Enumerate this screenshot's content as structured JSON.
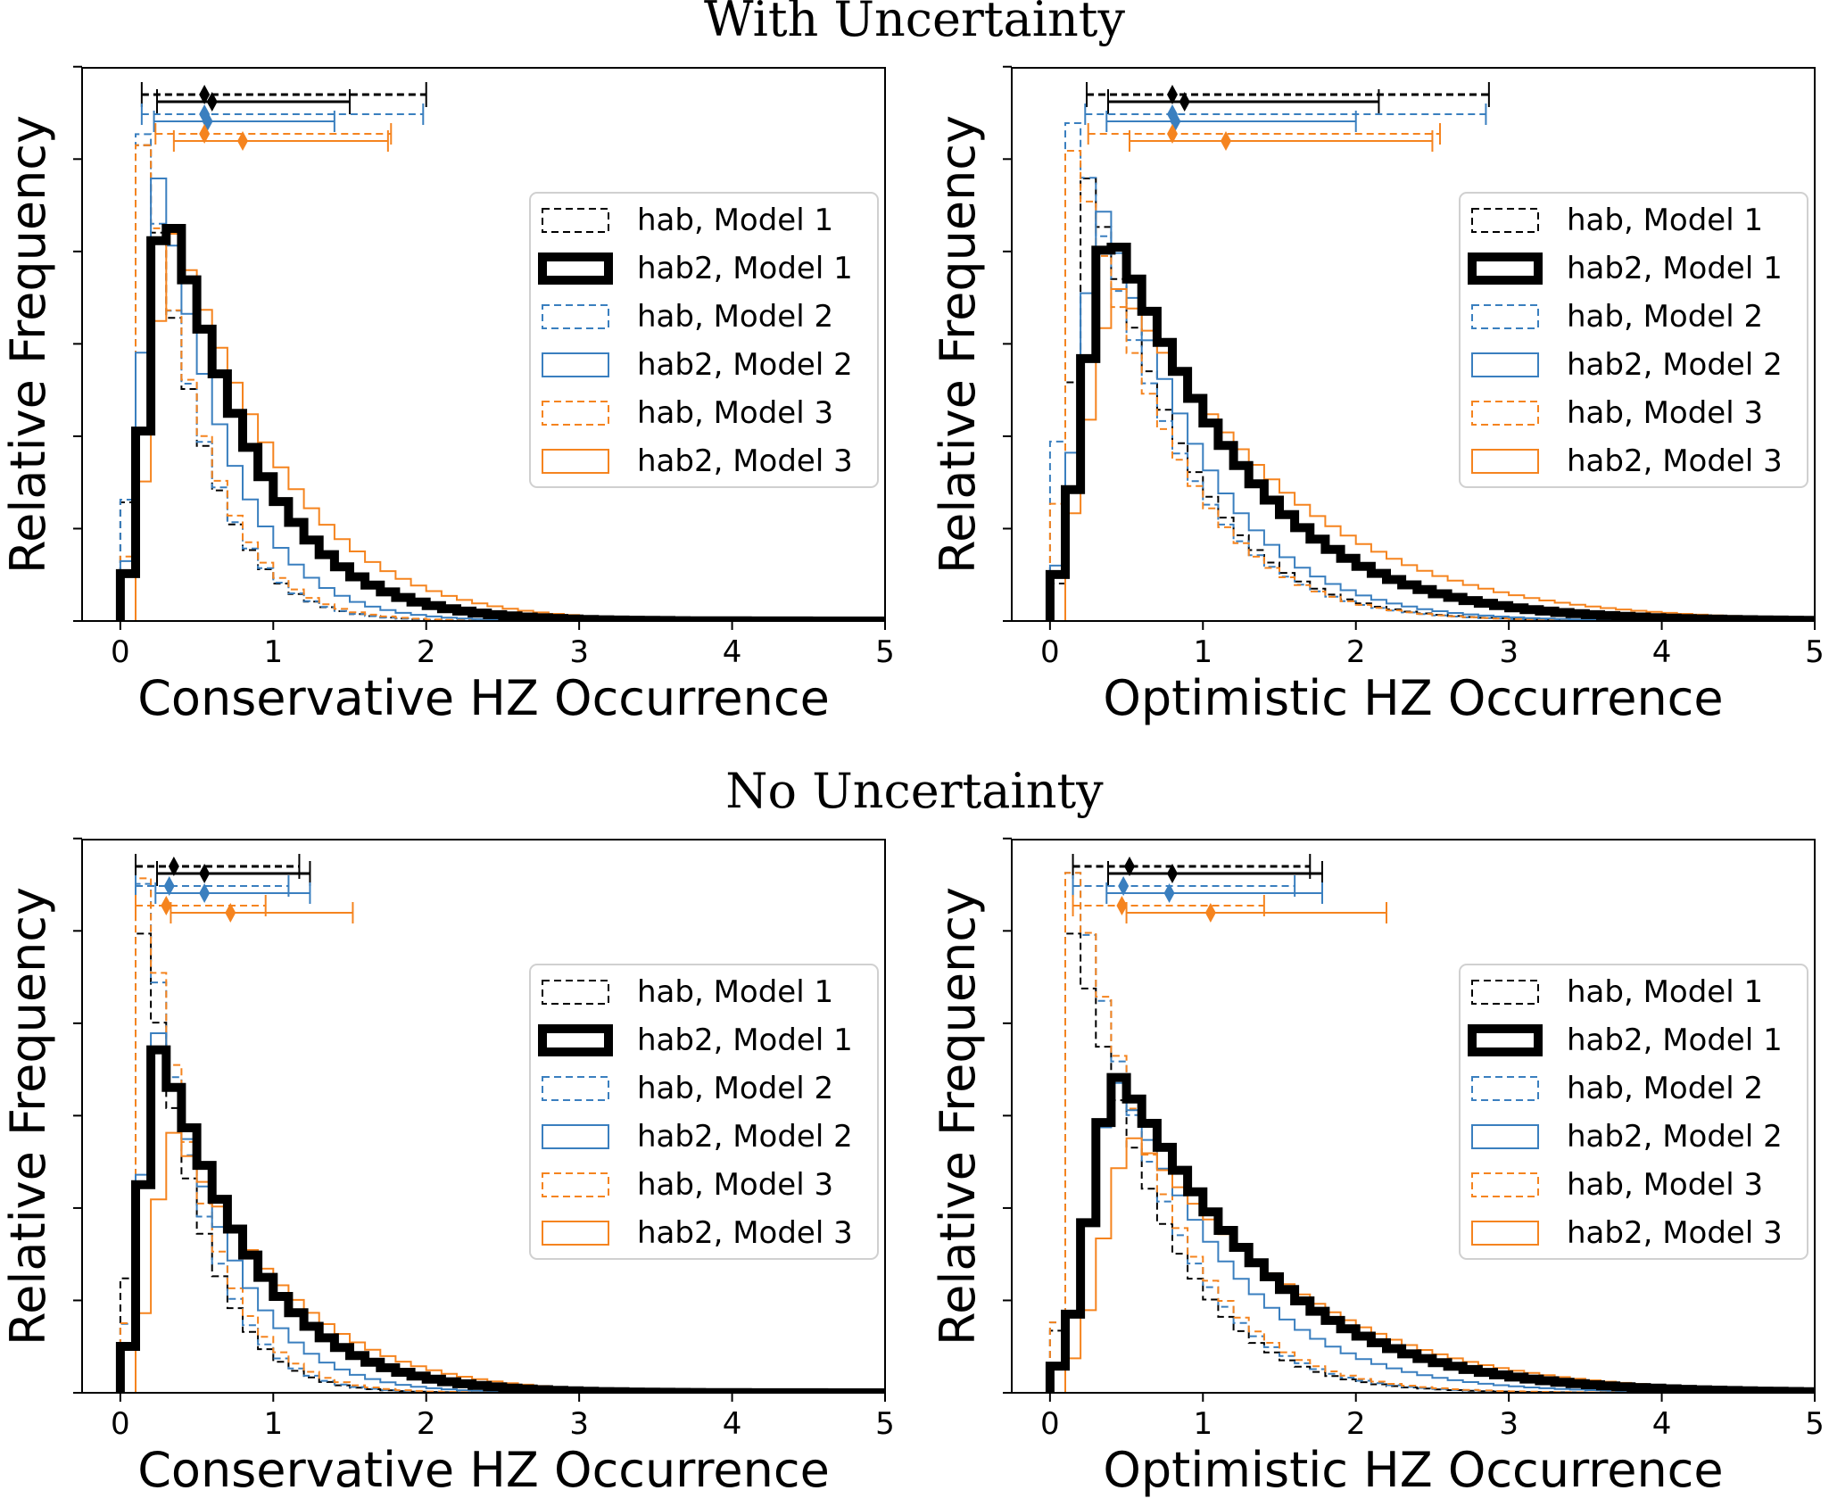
{
  "figure": {
    "top_title": "With Uncertainty",
    "bottom_title": "No Uncertainty"
  },
  "colors": {
    "model1": "#000000",
    "model2": "#3a7fbf",
    "model3": "#f5841f"
  },
  "chart_data": [
    {
      "id": "p1",
      "type": "histogram",
      "section": "With Uncertainty",
      "xlabel": "Conservative HZ Occurrence",
      "ylabel": "Relative Frequency",
      "xlim": [
        -0.25,
        5
      ],
      "xticks": [
        "0",
        "1",
        "2",
        "3",
        "4",
        "5"
      ],
      "ylim": [
        0,
        1.0
      ],
      "bin_width": 0.1,
      "legend": [
        "hab, Model 1",
        "hab2, Model 1",
        "hab, Model 2",
        "hab2, Model 2",
        "hab, Model 3",
        "hab2, Model 3"
      ],
      "series": [
        {
          "name": "hab, Model 1",
          "model": 1,
          "style": "dashed",
          "peak_x": 0.15,
          "peak": 0.86,
          "left_sigma": 0.06,
          "tail": 0.4,
          "onset": 0.0
        },
        {
          "name": "hab2, Model 1",
          "model": 1,
          "style": "thick",
          "peak_x": 0.3,
          "peak": 0.75,
          "left_sigma": 0.12,
          "tail": 0.62,
          "onset": 0.0
        },
        {
          "name": "hab, Model 2",
          "model": 2,
          "style": "dashed",
          "peak_x": 0.15,
          "peak": 0.88,
          "left_sigma": 0.06,
          "tail": 0.4,
          "onset": 0.0
        },
        {
          "name": "hab2, Model 2",
          "model": 2,
          "style": "solid",
          "peak_x": 0.25,
          "peak": 0.8,
          "left_sigma": 0.1,
          "tail": 0.48,
          "onset": 0.0
        },
        {
          "name": "hab, Model 3",
          "model": 3,
          "style": "dashed",
          "peak_x": 0.15,
          "peak": 0.86,
          "left_sigma": 0.05,
          "tail": 0.42,
          "onset": 0.0
        },
        {
          "name": "hab2, Model 3",
          "model": 3,
          "style": "solid",
          "peak_x": 0.35,
          "peak": 0.7,
          "left_sigma": 0.14,
          "tail": 0.75,
          "onset": 0.1
        }
      ],
      "intervals": [
        {
          "model": 1,
          "style": "dashed",
          "lo": 0.14,
          "mid": 0.55,
          "hi": 2.0
        },
        {
          "model": 1,
          "style": "solid",
          "lo": 0.24,
          "mid": 0.6,
          "hi": 1.5
        },
        {
          "model": 2,
          "style": "dashed",
          "lo": 0.14,
          "mid": 0.55,
          "hi": 1.98
        },
        {
          "model": 2,
          "style": "solid",
          "lo": 0.22,
          "mid": 0.57,
          "hi": 1.4
        },
        {
          "model": 3,
          "style": "dashed",
          "lo": 0.23,
          "mid": 0.55,
          "hi": 1.77
        },
        {
          "model": 3,
          "style": "solid",
          "lo": 0.35,
          "mid": 0.8,
          "hi": 1.75
        }
      ]
    },
    {
      "id": "p2",
      "type": "histogram",
      "section": "With Uncertainty",
      "xlabel": "Optimistic HZ Occurrence",
      "ylabel": "Relative Frequency",
      "xlim": [
        -0.25,
        5
      ],
      "xticks": [
        "0",
        "1",
        "2",
        "3",
        "4",
        "5"
      ],
      "ylim": [
        0,
        1.0
      ],
      "bin_width": 0.1,
      "legend": [
        "hab, Model 1",
        "hab2, Model 1",
        "hab, Model 2",
        "hab2, Model 2",
        "hab, Model 3",
        "hab2, Model 3"
      ],
      "series": [
        {
          "name": "hab, Model 1",
          "model": 1,
          "style": "dashed",
          "peak_x": 0.25,
          "peak": 0.8,
          "left_sigma": 0.09,
          "tail": 0.65,
          "onset": 0.0
        },
        {
          "name": "hab2, Model 1",
          "model": 1,
          "style": "thick",
          "peak_x": 0.4,
          "peak": 0.7,
          "left_sigma": 0.17,
          "tail": 0.92,
          "onset": 0.0
        },
        {
          "name": "hab, Model 2",
          "model": 2,
          "style": "dashed",
          "peak_x": 0.15,
          "peak": 0.9,
          "left_sigma": 0.07,
          "tail": 0.65,
          "onset": 0.0
        },
        {
          "name": "hab2, Model 2",
          "model": 2,
          "style": "solid",
          "peak_x": 0.35,
          "peak": 0.74,
          "left_sigma": 0.15,
          "tail": 0.7,
          "onset": 0.0
        },
        {
          "name": "hab, Model 3",
          "model": 3,
          "style": "dashed",
          "peak_x": 0.15,
          "peak": 0.85,
          "left_sigma": 0.06,
          "tail": 0.66,
          "onset": 0.0
        },
        {
          "name": "hab2, Model 3",
          "model": 3,
          "style": "solid",
          "peak_x": 0.45,
          "peak": 0.6,
          "left_sigma": 0.2,
          "tail": 1.15,
          "onset": 0.1
        }
      ],
      "intervals": [
        {
          "model": 1,
          "style": "dashed",
          "lo": 0.24,
          "mid": 0.8,
          "hi": 2.87
        },
        {
          "model": 1,
          "style": "solid",
          "lo": 0.38,
          "mid": 0.88,
          "hi": 2.15
        },
        {
          "model": 2,
          "style": "dashed",
          "lo": 0.23,
          "mid": 0.8,
          "hi": 2.85
        },
        {
          "model": 2,
          "style": "solid",
          "lo": 0.37,
          "mid": 0.82,
          "hi": 2.0
        },
        {
          "model": 3,
          "style": "dashed",
          "lo": 0.25,
          "mid": 0.8,
          "hi": 2.55
        },
        {
          "model": 3,
          "style": "solid",
          "lo": 0.52,
          "mid": 1.15,
          "hi": 2.5
        }
      ]
    },
    {
      "id": "p3",
      "type": "histogram",
      "section": "No Uncertainty",
      "xlabel": "Conservative HZ Occurrence",
      "ylabel": "Relative Frequency",
      "xlim": [
        -0.25,
        5
      ],
      "xticks": [
        "0",
        "1",
        "2",
        "3",
        "4",
        "5"
      ],
      "ylim": [
        0,
        1.0
      ],
      "bin_width": 0.1,
      "legend": [
        "hab, Model 1",
        "hab2, Model 1",
        "hab, Model 2",
        "hab2, Model 2",
        "hab, Model 3",
        "hab2, Model 3"
      ],
      "series": [
        {
          "name": "hab, Model 1",
          "model": 1,
          "style": "dashed",
          "peak_x": 0.15,
          "peak": 0.83,
          "left_sigma": 0.06,
          "tail": 0.38,
          "onset": 0.0
        },
        {
          "name": "hab2, Model 1",
          "model": 1,
          "style": "thick",
          "peak_x": 0.25,
          "peak": 0.62,
          "left_sigma": 0.1,
          "tail": 0.65,
          "onset": 0.0
        },
        {
          "name": "hab, Model 2",
          "model": 2,
          "style": "dashed",
          "peak_x": 0.15,
          "peak": 0.92,
          "left_sigma": 0.05,
          "tail": 0.38,
          "onset": 0.0
        },
        {
          "name": "hab2, Model 2",
          "model": 2,
          "style": "solid",
          "peak_x": 0.25,
          "peak": 0.65,
          "left_sigma": 0.1,
          "tail": 0.5,
          "onset": 0.0
        },
        {
          "name": "hab, Model 3",
          "model": 3,
          "style": "dashed",
          "peak_x": 0.15,
          "peak": 0.93,
          "left_sigma": 0.05,
          "tail": 0.4,
          "onset": 0.0
        },
        {
          "name": "hab2, Model 3",
          "model": 3,
          "style": "solid",
          "peak_x": 0.35,
          "peak": 0.47,
          "left_sigma": 0.13,
          "tail": 0.78,
          "onset": 0.1
        }
      ],
      "intervals": [
        {
          "model": 1,
          "style": "dashed",
          "lo": 0.1,
          "mid": 0.35,
          "hi": 1.17
        },
        {
          "model": 1,
          "style": "solid",
          "lo": 0.24,
          "mid": 0.55,
          "hi": 1.24
        },
        {
          "model": 2,
          "style": "dashed",
          "lo": 0.1,
          "mid": 0.32,
          "hi": 1.1
        },
        {
          "model": 2,
          "style": "solid",
          "lo": 0.23,
          "mid": 0.55,
          "hi": 1.24
        },
        {
          "model": 3,
          "style": "dashed",
          "lo": 0.1,
          "mid": 0.3,
          "hi": 0.95
        },
        {
          "model": 3,
          "style": "solid",
          "lo": 0.33,
          "mid": 0.72,
          "hi": 1.52
        }
      ]
    },
    {
      "id": "p4",
      "type": "histogram",
      "section": "No Uncertainty",
      "xlabel": "Optimistic HZ Occurrence",
      "ylabel": "Relative Frequency",
      "xlim": [
        -0.25,
        5
      ],
      "xticks": [
        "0",
        "1",
        "2",
        "3",
        "4",
        "5"
      ],
      "ylim": [
        0,
        1.0
      ],
      "bin_width": 0.1,
      "legend": [
        "hab, Model 1",
        "hab2, Model 1",
        "hab, Model 2",
        "hab2, Model 2",
        "hab, Model 3",
        "hab2, Model 3"
      ],
      "series": [
        {
          "name": "hab, Model 1",
          "model": 1,
          "style": "dashed",
          "peak_x": 0.15,
          "peak": 0.83,
          "left_sigma": 0.05,
          "tail": 0.6,
          "onset": 0.0
        },
        {
          "name": "hab2, Model 1",
          "model": 1,
          "style": "thick",
          "peak_x": 0.45,
          "peak": 0.57,
          "left_sigma": 0.18,
          "tail": 1.0,
          "onset": 0.0
        },
        {
          "name": "hab, Model 2",
          "model": 2,
          "style": "dashed",
          "peak_x": 0.15,
          "peak": 0.94,
          "left_sigma": 0.05,
          "tail": 0.6,
          "onset": 0.0
        },
        {
          "name": "hab2, Model 2",
          "model": 2,
          "style": "solid",
          "peak_x": 0.45,
          "peak": 0.56,
          "left_sigma": 0.18,
          "tail": 0.8,
          "onset": 0.0
        },
        {
          "name": "hab, Model 3",
          "model": 3,
          "style": "dashed",
          "peak_x": 0.15,
          "peak": 0.94,
          "left_sigma": 0.05,
          "tail": 0.62,
          "onset": 0.0
        },
        {
          "name": "hab2, Model 3",
          "model": 3,
          "style": "solid",
          "peak_x": 0.55,
          "peak": 0.46,
          "left_sigma": 0.2,
          "tail": 1.15,
          "onset": 0.1
        }
      ],
      "intervals": [
        {
          "model": 1,
          "style": "dashed",
          "lo": 0.15,
          "mid": 0.52,
          "hi": 1.7
        },
        {
          "model": 1,
          "style": "solid",
          "lo": 0.38,
          "mid": 0.8,
          "hi": 1.78
        },
        {
          "model": 2,
          "style": "dashed",
          "lo": 0.15,
          "mid": 0.48,
          "hi": 1.6
        },
        {
          "model": 2,
          "style": "solid",
          "lo": 0.37,
          "mid": 0.78,
          "hi": 1.78
        },
        {
          "model": 3,
          "style": "dashed",
          "lo": 0.15,
          "mid": 0.47,
          "hi": 1.4
        },
        {
          "model": 3,
          "style": "solid",
          "lo": 0.5,
          "mid": 1.05,
          "hi": 2.2
        }
      ]
    }
  ]
}
